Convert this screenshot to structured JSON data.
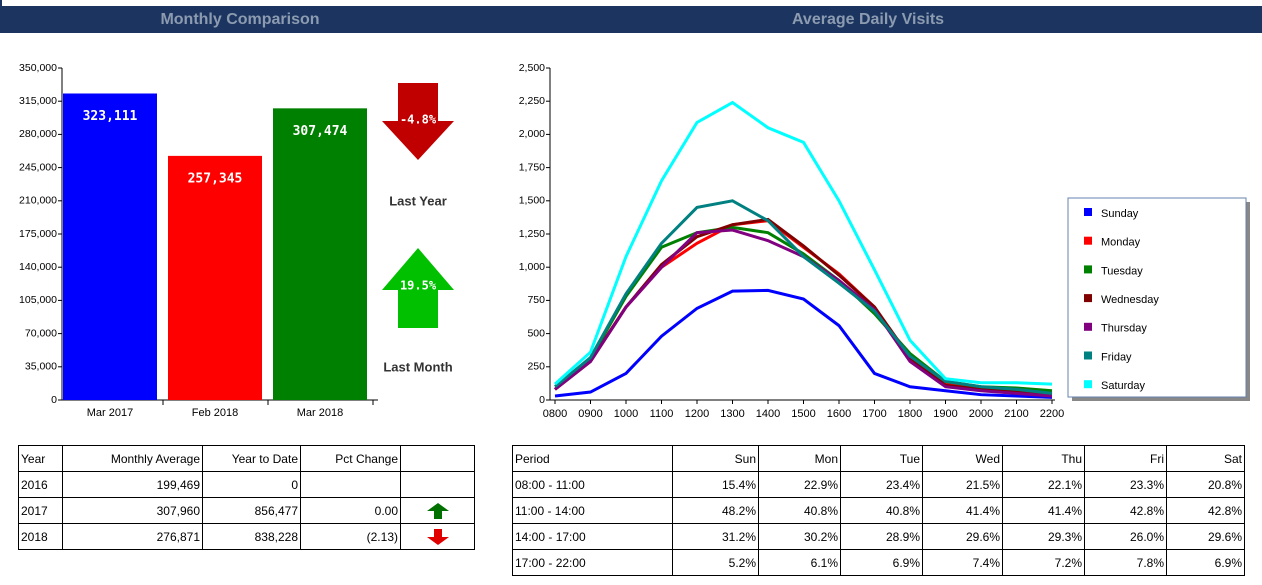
{
  "panels": [
    "Monthly Comparison",
    "Average Daily Visits"
  ],
  "chart_data": [
    {
      "type": "bar",
      "categories": [
        "Mar 2017",
        "Feb 2018",
        "Mar 2018"
      ],
      "values": [
        323111,
        257345,
        307474
      ],
      "value_labels": [
        "323,111",
        "257,345",
        "307,474"
      ],
      "colors": [
        "#0000ff",
        "#ff0000",
        "#008000"
      ],
      "ylim": [
        0,
        350000
      ],
      "yticks": [
        0,
        {
          "value": 35000,
          "label": "35,000"
        },
        {
          "value": 70000,
          "label": "70,000"
        },
        {
          "value": 105000,
          "label": "105,000"
        },
        {
          "value": 140000,
          "label": "140,000"
        },
        {
          "value": 175000,
          "label": "175,000"
        },
        {
          "value": 210000,
          "label": "210,000"
        },
        {
          "value": 245000,
          "label": "245,000"
        },
        {
          "value": 280000,
          "label": "280,000"
        },
        {
          "value": 315000,
          "label": "315,000"
        },
        {
          "value": 350000,
          "label": "350,000"
        }
      ]
    },
    {
      "type": "line",
      "categories": [
        "0800",
        "0900",
        "1000",
        "1100",
        "1200",
        "1300",
        "1400",
        "1500",
        "1600",
        "1700",
        "1800",
        "1900",
        "2000",
        "2100",
        "2200"
      ],
      "series": [
        {
          "name": "Sunday",
          "color": "#0000ff",
          "values": [
            30,
            60,
            200,
            480,
            690,
            820,
            825,
            760,
            560,
            200,
            100,
            70,
            40,
            30,
            20
          ]
        },
        {
          "name": "Monday",
          "color": "#ff0000",
          "values": [
            80,
            300,
            700,
            1000,
            1180,
            1320,
            1350,
            1150,
            950,
            700,
            300,
            120,
            90,
            80,
            60
          ]
        },
        {
          "name": "Tuesday",
          "color": "#008000",
          "values": [
            80,
            310,
            780,
            1150,
            1260,
            1300,
            1260,
            1100,
            900,
            650,
            350,
            140,
            100,
            90,
            70
          ]
        },
        {
          "name": "Wednesday",
          "color": "#800000",
          "values": [
            80,
            290,
            700,
            1020,
            1230,
            1320,
            1360,
            1160,
            940,
            700,
            320,
            110,
            80,
            60,
            40
          ]
        },
        {
          "name": "Thursday",
          "color": "#800080",
          "values": [
            80,
            290,
            700,
            1000,
            1260,
            1280,
            1200,
            1080,
            900,
            680,
            290,
            100,
            70,
            50,
            30
          ]
        },
        {
          "name": "Friday",
          "color": "#008080",
          "values": [
            100,
            320,
            800,
            1180,
            1450,
            1500,
            1350,
            1080,
            880,
            670,
            330,
            140,
            100,
            80,
            50
          ]
        },
        {
          "name": "Saturday",
          "color": "#00ffff",
          "values": [
            120,
            360,
            1080,
            1650,
            2090,
            2240,
            2050,
            1940,
            1500,
            980,
            450,
            160,
            130,
            130,
            120
          ]
        }
      ],
      "ylim": [
        0,
        2500
      ],
      "yticks": [
        0,
        250,
        500,
        750,
        {
          "value": 1000,
          "label": "1,000"
        },
        {
          "value": 1250,
          "label": "1,250"
        },
        {
          "value": 1500,
          "label": "1,500"
        },
        {
          "value": 1750,
          "label": "1,750"
        },
        {
          "value": 2000,
          "label": "2,000"
        },
        {
          "value": 2250,
          "label": "2,250"
        },
        {
          "value": 2500,
          "label": "2,500"
        }
      ]
    }
  ],
  "kpis": [
    {
      "value": "-4.8%",
      "label": "Last Year",
      "direction": "down"
    },
    {
      "value": "19.5%",
      "label": "Last Month",
      "direction": "up"
    }
  ],
  "tables": [
    {
      "header": [
        "Year",
        "Monthly Average",
        "Year to Date",
        "Pct Change"
      ],
      "rows": [
        [
          "2016",
          "199,469",
          "0",
          ""
        ],
        [
          "2017",
          "307,960",
          "856,477",
          "0.00"
        ],
        [
          "2018",
          "276,871",
          "838,228",
          "(2.13)"
        ]
      ],
      "row_icons": [
        null,
        "up",
        "down"
      ]
    },
    {
      "header": [
        "Period",
        "Sun",
        "Mon",
        "Tue",
        "Wed",
        "Thu",
        "Fri",
        "Sat"
      ],
      "rows": [
        [
          "08:00 - 11:00",
          "15.4%",
          "22.9%",
          "23.4%",
          "21.5%",
          "22.1%",
          "23.3%",
          "20.8%"
        ],
        [
          "11:00 - 14:00",
          "48.2%",
          "40.8%",
          "40.8%",
          "41.4%",
          "41.4%",
          "42.8%",
          "42.8%"
        ],
        [
          "14:00 - 17:00",
          "31.2%",
          "30.2%",
          "28.9%",
          "29.6%",
          "29.3%",
          "26.0%",
          "29.6%"
        ],
        [
          "17:00 - 22:00",
          "5.2%",
          "6.1%",
          "6.9%",
          "7.4%",
          "7.2%",
          "7.8%",
          "6.9%"
        ]
      ]
    }
  ]
}
